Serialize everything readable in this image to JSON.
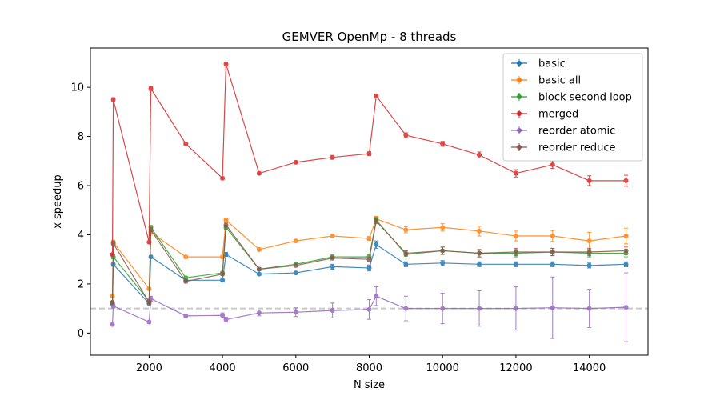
{
  "chart_data": {
    "type": "line",
    "title": "GEMVER OpenMp - 8 threads",
    "xlabel": "N size",
    "ylabel": "x speedup",
    "xlim": [
      400,
      15600
    ],
    "ylim": [
      -0.9,
      11.6
    ],
    "xticks": [
      2000,
      4000,
      6000,
      8000,
      10000,
      12000,
      14000
    ],
    "yticks": [
      0,
      2,
      4,
      6,
      8,
      10
    ],
    "grid": false,
    "legend_position": "top-right",
    "reference_line": {
      "y": 1,
      "style": "dashed",
      "color": "#c8c8c8"
    },
    "x": [
      1000,
      1024,
      2000,
      2048,
      3000,
      4000,
      4096,
      5000,
      6000,
      7000,
      8000,
      8192,
      9000,
      10000,
      11000,
      12000,
      13000,
      14000,
      15000
    ],
    "series": [
      {
        "name": "basic",
        "color": "#1f77b4",
        "values": [
          1.2,
          2.8,
          1.2,
          3.1,
          2.15,
          2.15,
          3.2,
          2.4,
          2.45,
          2.7,
          2.65,
          3.6,
          2.8,
          2.85,
          2.8,
          2.8,
          2.8,
          2.75,
          2.8
        ],
        "errors": [
          0.05,
          0.08,
          0.05,
          0.06,
          0.06,
          0.06,
          0.08,
          0.05,
          0.05,
          0.1,
          0.12,
          0.15,
          0.1,
          0.1,
          0.1,
          0.1,
          0.1,
          0.1,
          0.1
        ]
      },
      {
        "name": "basic all",
        "color": "#ff7f0e",
        "values": [
          1.5,
          3.7,
          1.8,
          4.1,
          3.1,
          3.1,
          4.6,
          3.4,
          3.75,
          3.95,
          3.85,
          4.65,
          4.2,
          4.3,
          4.15,
          3.95,
          3.95,
          3.75,
          3.95
        ],
        "errors": [
          0.05,
          0.08,
          0.05,
          0.08,
          0.06,
          0.06,
          0.08,
          0.06,
          0.06,
          0.08,
          0.08,
          0.1,
          0.12,
          0.15,
          0.2,
          0.2,
          0.22,
          0.35,
          0.32
        ]
      },
      {
        "name": "block second loop",
        "color": "#2ca02c",
        "values": [
          1.25,
          3.1,
          1.3,
          4.3,
          2.25,
          2.45,
          4.3,
          2.6,
          2.8,
          3.1,
          3.1,
          4.6,
          3.2,
          3.35,
          3.25,
          3.25,
          3.3,
          3.25,
          3.25
        ],
        "errors": [
          0.05,
          0.08,
          0.05,
          0.08,
          0.06,
          0.06,
          0.08,
          0.06,
          0.06,
          0.08,
          0.08,
          0.1,
          0.15,
          0.15,
          0.15,
          0.15,
          0.15,
          0.15,
          0.15
        ]
      },
      {
        "name": "merged",
        "color": "#d62728",
        "values": [
          3.2,
          9.5,
          3.7,
          9.95,
          7.7,
          6.3,
          10.95,
          6.5,
          6.95,
          7.15,
          7.3,
          9.65,
          8.05,
          7.7,
          7.25,
          6.5,
          6.85,
          6.2,
          6.2
        ],
        "errors": [
          0.05,
          0.08,
          0.05,
          0.08,
          0.06,
          0.06,
          0.08,
          0.06,
          0.06,
          0.08,
          0.08,
          0.08,
          0.1,
          0.1,
          0.12,
          0.15,
          0.15,
          0.2,
          0.22
        ]
      },
      {
        "name": "reorder atomic",
        "color": "#9467bd",
        "values": [
          0.35,
          1.1,
          0.45,
          1.4,
          0.7,
          0.72,
          0.55,
          0.82,
          0.85,
          0.92,
          0.96,
          1.5,
          1.0,
          1.0,
          1.0,
          1.0,
          1.03,
          1.0,
          1.05
        ],
        "errors": [
          0.05,
          0.08,
          0.05,
          0.1,
          0.06,
          0.1,
          0.1,
          0.12,
          0.18,
          0.3,
          0.4,
          0.38,
          0.5,
          0.62,
          0.72,
          0.88,
          1.25,
          0.78,
          1.4
        ]
      },
      {
        "name": "reorder reduce",
        "color": "#8c564b",
        "values": [
          1.25,
          3.65,
          1.25,
          4.2,
          2.1,
          2.4,
          4.4,
          2.6,
          2.75,
          3.05,
          3.0,
          4.55,
          3.25,
          3.35,
          3.25,
          3.3,
          3.3,
          3.3,
          3.35
        ],
        "errors": [
          0.05,
          0.08,
          0.05,
          0.08,
          0.06,
          0.06,
          0.08,
          0.06,
          0.06,
          0.08,
          0.08,
          0.1,
          0.12,
          0.15,
          0.15,
          0.15,
          0.15,
          0.15,
          0.15
        ]
      }
    ]
  }
}
